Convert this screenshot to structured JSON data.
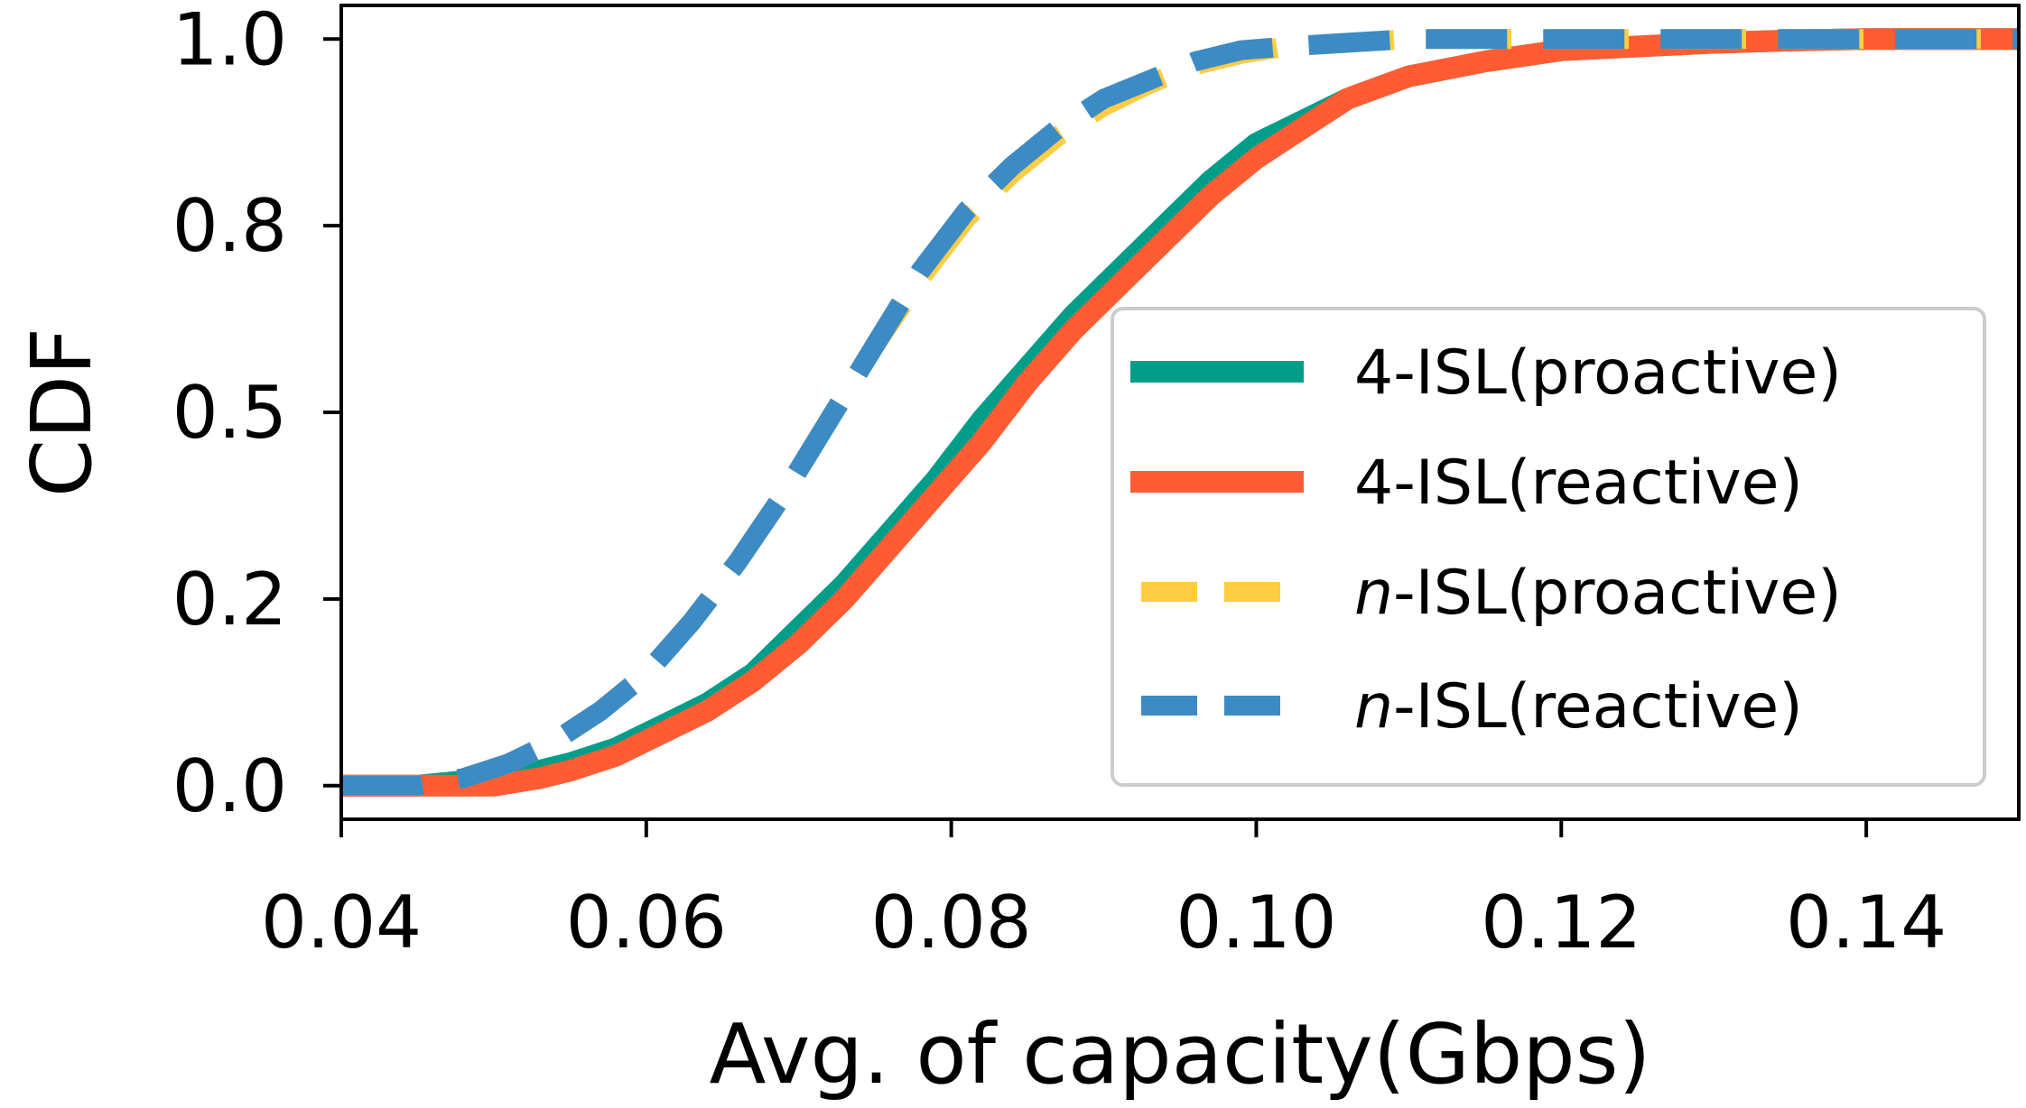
{
  "chart_data": {
    "type": "line",
    "title": "",
    "xlabel": "Avg. of capacity(Gbps)",
    "ylabel": "CDF",
    "xlim": [
      0.04,
      0.15
    ],
    "ylim": [
      -0.045,
      1.045
    ],
    "xticks": [
      0.04,
      0.06,
      0.08,
      0.1,
      0.12,
      0.14
    ],
    "xtick_labels": [
      "0.04",
      "0.06",
      "0.08",
      "0.10",
      "0.12",
      "0.14"
    ],
    "yticks": [
      0.0,
      0.25,
      0.5,
      0.75,
      1.0
    ],
    "ytick_labels": [
      "0.0",
      "0.2",
      "0.5",
      "0.8",
      "1.0"
    ],
    "grid": false,
    "legend_position": "center-right",
    "series": [
      {
        "name_prefix": "4",
        "name_suffix": "-ISL(proactive)",
        "name_prefix_italic": false,
        "color": "#009E8A",
        "style": "solid",
        "x": [
          0.04,
          0.045,
          0.05,
          0.053,
          0.055,
          0.058,
          0.061,
          0.064,
          0.067,
          0.07,
          0.073,
          0.076,
          0.079,
          0.082,
          0.085,
          0.088,
          0.091,
          0.094,
          0.097,
          0.1,
          0.103,
          0.106,
          0.11,
          0.115,
          0.12,
          0.125,
          0.13,
          0.135,
          0.14,
          0.145,
          0.15
        ],
        "y": [
          0.0,
          0.0,
          0.01,
          0.02,
          0.03,
          0.05,
          0.08,
          0.11,
          0.15,
          0.21,
          0.27,
          0.34,
          0.41,
          0.49,
          0.56,
          0.63,
          0.69,
          0.75,
          0.81,
          0.86,
          0.89,
          0.92,
          0.95,
          0.97,
          0.985,
          0.99,
          0.995,
          0.998,
          1.0,
          1.0,
          1.0
        ]
      },
      {
        "name_prefix": "4",
        "name_suffix": "-ISL(reactive)",
        "name_prefix_italic": false,
        "color": "#FF5C33",
        "style": "solid",
        "x": [
          0.04,
          0.045,
          0.05,
          0.053,
          0.055,
          0.058,
          0.061,
          0.064,
          0.067,
          0.07,
          0.073,
          0.076,
          0.079,
          0.082,
          0.085,
          0.088,
          0.091,
          0.094,
          0.097,
          0.1,
          0.103,
          0.106,
          0.11,
          0.115,
          0.12,
          0.125,
          0.13,
          0.135,
          0.14,
          0.145,
          0.15
        ],
        "y": [
          0.0,
          0.0,
          0.0,
          0.01,
          0.02,
          0.04,
          0.07,
          0.1,
          0.14,
          0.19,
          0.25,
          0.32,
          0.39,
          0.46,
          0.54,
          0.61,
          0.67,
          0.73,
          0.79,
          0.84,
          0.88,
          0.92,
          0.95,
          0.97,
          0.985,
          0.99,
          0.995,
          0.998,
          1.0,
          1.0,
          1.0
        ]
      },
      {
        "name_prefix": "n",
        "name_suffix": "-ISL(proactive)",
        "name_prefix_italic": true,
        "color": "#FFCC44",
        "style": "dashed",
        "x": [
          0.04,
          0.045,
          0.048,
          0.051,
          0.054,
          0.057,
          0.06,
          0.063,
          0.066,
          0.069,
          0.072,
          0.075,
          0.078,
          0.081,
          0.084,
          0.087,
          0.09,
          0.093,
          0.096,
          0.099,
          0.102,
          0.106,
          0.11,
          0.115,
          0.12,
          0.13,
          0.14,
          0.15
        ],
        "y": [
          0.0,
          0.0,
          0.01,
          0.03,
          0.06,
          0.1,
          0.15,
          0.22,
          0.3,
          0.39,
          0.49,
          0.59,
          0.68,
          0.76,
          0.82,
          0.87,
          0.91,
          0.94,
          0.965,
          0.98,
          0.99,
          0.995,
          1.0,
          1.0,
          1.0,
          1.0,
          1.0,
          1.0
        ]
      },
      {
        "name_prefix": "n",
        "name_suffix": "-ISL(reactive)",
        "name_prefix_italic": true,
        "color": "#3D8BC4",
        "style": "dashed",
        "x": [
          0.04,
          0.045,
          0.048,
          0.051,
          0.054,
          0.057,
          0.06,
          0.063,
          0.066,
          0.069,
          0.072,
          0.075,
          0.078,
          0.081,
          0.084,
          0.087,
          0.09,
          0.093,
          0.096,
          0.099,
          0.102,
          0.106,
          0.11,
          0.115,
          0.12,
          0.13,
          0.14,
          0.15
        ],
        "y": [
          0.0,
          0.0,
          0.01,
          0.03,
          0.06,
          0.1,
          0.15,
          0.22,
          0.3,
          0.39,
          0.49,
          0.59,
          0.69,
          0.77,
          0.83,
          0.88,
          0.92,
          0.945,
          0.97,
          0.985,
          0.99,
          0.995,
          1.0,
          1.0,
          1.0,
          1.0,
          1.0,
          1.0
        ]
      }
    ]
  }
}
